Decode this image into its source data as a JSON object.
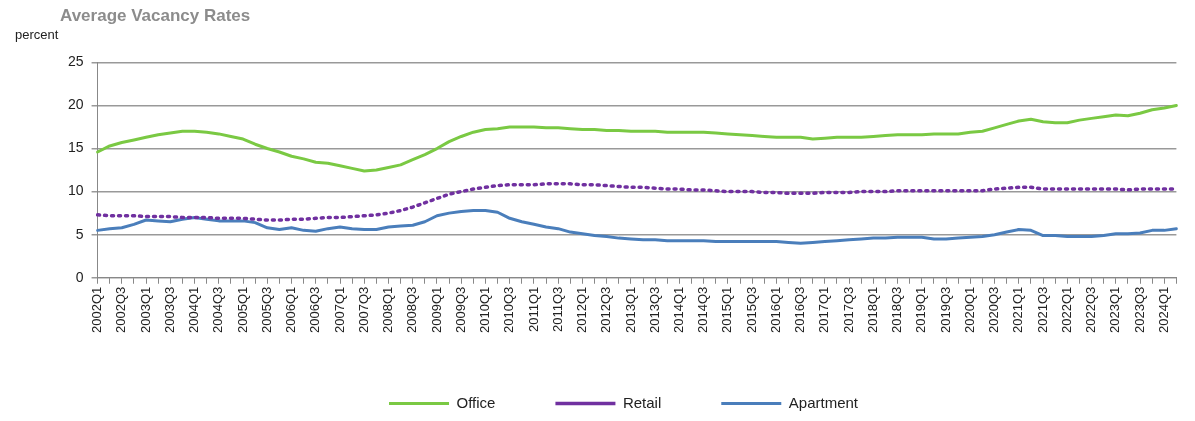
{
  "chart_data": {
    "type": "line",
    "title": "Average Vacancy Rates",
    "ylabel": "percent",
    "categories": [
      "2002Q1",
      null,
      "2002Q3",
      null,
      "2003Q1",
      null,
      "2003Q3",
      null,
      "2004Q1",
      null,
      "2004Q3",
      null,
      "2005Q1",
      null,
      "2005Q3",
      null,
      "2006Q1",
      null,
      "2006Q3",
      null,
      "2007Q1",
      null,
      "2007Q3",
      null,
      "2008Q1",
      null,
      "2008Q3",
      null,
      "2009Q1",
      null,
      "2009Q3",
      null,
      "2010Q1",
      null,
      "2010Q3",
      null,
      "2011Q1",
      null,
      "2011Q3",
      null,
      "2012Q1",
      null,
      "2012Q3",
      null,
      "2013Q1",
      null,
      "2013Q3",
      null,
      "2014Q1",
      null,
      "2014Q3",
      null,
      "2015Q1",
      null,
      "2015Q3",
      null,
      "2016Q1",
      null,
      "2016Q3",
      null,
      "2017Q1",
      null,
      "2017Q3",
      null,
      "2018Q1",
      null,
      "2018Q3",
      null,
      "2019Q1",
      null,
      "2019Q3",
      null,
      "2020Q1",
      null,
      "2020Q3",
      null,
      "2021Q1",
      null,
      "2021Q3",
      null,
      "2022Q1",
      null,
      "2022Q3",
      null,
      "2023Q1",
      null,
      "2023Q3",
      null,
      "2024Q1",
      null
    ],
    "series": [
      {
        "name": "Office",
        "color": "#7ac943",
        "line_style": "solid",
        "values": [
          14.6,
          15.3,
          15.7,
          16.0,
          16.3,
          16.6,
          16.8,
          17.0,
          17.0,
          16.9,
          16.7,
          16.4,
          16.1,
          15.5,
          15.0,
          14.6,
          14.1,
          13.8,
          13.4,
          13.3,
          13.0,
          12.7,
          12.4,
          12.5,
          12.8,
          13.1,
          13.7,
          14.3,
          15.0,
          15.8,
          16.4,
          16.9,
          17.2,
          17.3,
          17.5,
          17.5,
          17.5,
          17.4,
          17.4,
          17.3,
          17.2,
          17.2,
          17.1,
          17.1,
          17.0,
          17.0,
          17.0,
          16.9,
          16.9,
          16.9,
          16.9,
          16.8,
          16.7,
          16.6,
          16.5,
          16.4,
          16.3,
          16.3,
          16.3,
          16.1,
          16.2,
          16.3,
          16.3,
          16.3,
          16.4,
          16.5,
          16.6,
          16.6,
          16.6,
          16.7,
          16.7,
          16.7,
          16.9,
          17.0,
          17.4,
          17.8,
          18.2,
          18.4,
          18.1,
          18.0,
          18.0,
          18.3,
          18.5,
          18.7,
          18.9,
          18.8,
          19.1,
          19.5,
          19.7,
          20.0
        ]
      },
      {
        "name": "Retail",
        "color": "#7030a0",
        "line_style": "dotted",
        "values": [
          7.3,
          7.2,
          7.2,
          7.2,
          7.1,
          7.1,
          7.1,
          7.0,
          7.0,
          7.0,
          6.9,
          6.9,
          6.9,
          6.8,
          6.7,
          6.7,
          6.8,
          6.8,
          6.9,
          7.0,
          7.0,
          7.1,
          7.2,
          7.3,
          7.5,
          7.8,
          8.2,
          8.7,
          9.2,
          9.7,
          10.0,
          10.3,
          10.5,
          10.7,
          10.8,
          10.8,
          10.8,
          10.9,
          10.9,
          10.9,
          10.8,
          10.8,
          10.7,
          10.6,
          10.5,
          10.5,
          10.4,
          10.3,
          10.3,
          10.2,
          10.2,
          10.1,
          10.0,
          10.0,
          10.0,
          9.9,
          9.9,
          9.8,
          9.8,
          9.8,
          9.9,
          9.9,
          9.9,
          10.0,
          10.0,
          10.0,
          10.1,
          10.1,
          10.1,
          10.1,
          10.1,
          10.1,
          10.1,
          10.1,
          10.3,
          10.4,
          10.5,
          10.5,
          10.3,
          10.3,
          10.3,
          10.3,
          10.3,
          10.3,
          10.3,
          10.2,
          10.3,
          10.3,
          10.3,
          10.3
        ]
      },
      {
        "name": "Apartment",
        "color": "#4a7ebb",
        "line_style": "solid",
        "values": [
          5.5,
          5.7,
          5.8,
          6.2,
          6.7,
          6.6,
          6.5,
          6.8,
          7.0,
          6.8,
          6.6,
          6.6,
          6.6,
          6.4,
          5.8,
          5.6,
          5.8,
          5.5,
          5.4,
          5.7,
          5.9,
          5.7,
          5.6,
          5.6,
          5.9,
          6.0,
          6.1,
          6.5,
          7.2,
          7.5,
          7.7,
          7.8,
          7.8,
          7.6,
          6.9,
          6.5,
          6.2,
          5.9,
          5.7,
          5.3,
          5.1,
          4.9,
          4.8,
          4.6,
          4.5,
          4.4,
          4.4,
          4.3,
          4.3,
          4.3,
          4.3,
          4.2,
          4.2,
          4.2,
          4.2,
          4.2,
          4.2,
          4.1,
          4.0,
          4.1,
          4.2,
          4.3,
          4.4,
          4.5,
          4.6,
          4.6,
          4.7,
          4.7,
          4.7,
          4.5,
          4.5,
          4.6,
          4.7,
          4.8,
          5.0,
          5.3,
          5.6,
          5.5,
          4.9,
          4.9,
          4.8,
          4.8,
          4.8,
          4.9,
          5.1,
          5.1,
          5.2,
          5.5,
          5.5,
          5.7
        ]
      }
    ],
    "ylim": [
      0,
      25
    ],
    "yticks": [
      0,
      5,
      10,
      15,
      20,
      25
    ],
    "grid": "y",
    "legend": "bottom",
    "marker": "none"
  }
}
